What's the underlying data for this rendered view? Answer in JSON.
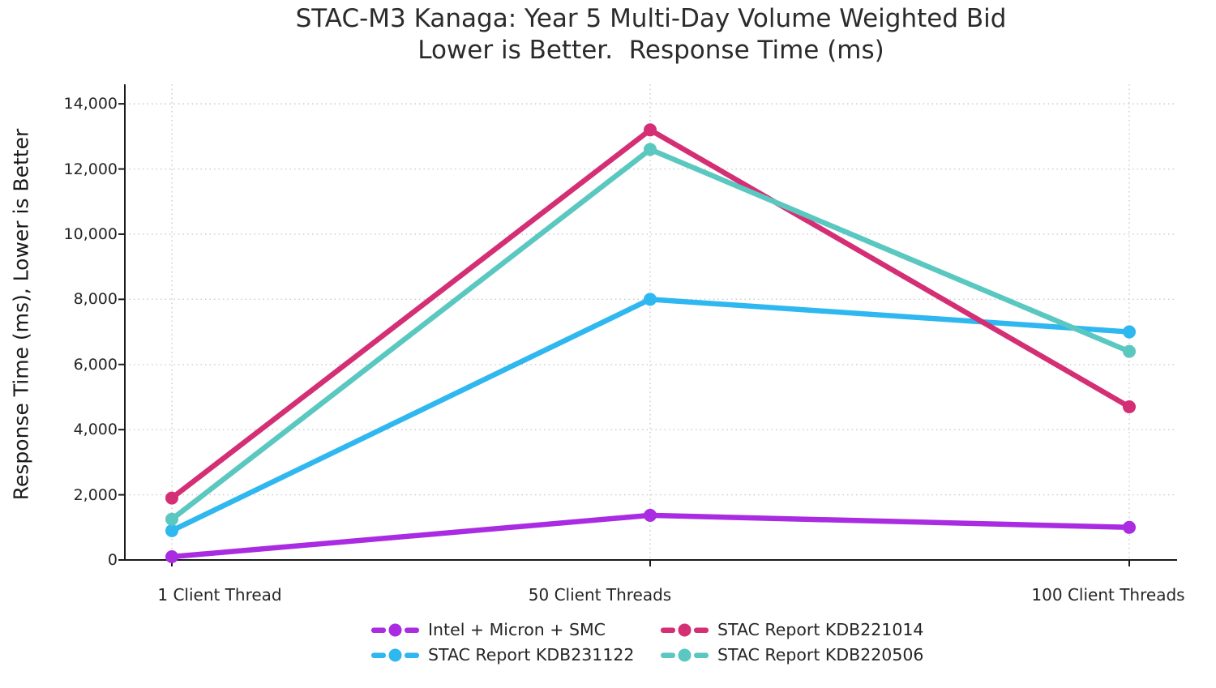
{
  "chart_data": {
    "type": "line",
    "title_line1": "STAC-M3 Kanaga: Year 5 Multi-Day Volume Weighted Bid",
    "title_line2": "Lower is Better.  Response Time (ms)",
    "ylabel": "Response Time (ms), Lower is Better",
    "categories": [
      "1 Client Thread",
      "50 Client Threads",
      "100 Client Threads"
    ],
    "ylim": [
      0,
      14600
    ],
    "ytick_step": 2000,
    "ytick_labels": [
      "0",
      "2,000",
      "4,000",
      "6,000",
      "8,000",
      "10,000",
      "12,000",
      "14,000"
    ],
    "grid": "dotted",
    "legend_position": "bottom",
    "series": [
      {
        "name": "Intel + Micron + SMC",
        "color": "#A92BE2",
        "values": [
          100,
          1370,
          1000
        ]
      },
      {
        "name": "STAC Report KDB231122",
        "color": "#2FB7F0",
        "values": [
          900,
          8000,
          7000
        ]
      },
      {
        "name": "STAC Report KDB221014",
        "color": "#D42F74",
        "values": [
          1900,
          13200,
          4700
        ]
      },
      {
        "name": "STAC Report KDB220506",
        "color": "#5AC8C0",
        "values": [
          1250,
          12600,
          6400
        ]
      }
    ],
    "legend_column_order": [
      [
        0,
        1
      ],
      [
        2,
        3
      ]
    ]
  },
  "colors": {
    "text": "#262626",
    "axis": "#1a1a1a",
    "grid": "#cbcbcb"
  }
}
